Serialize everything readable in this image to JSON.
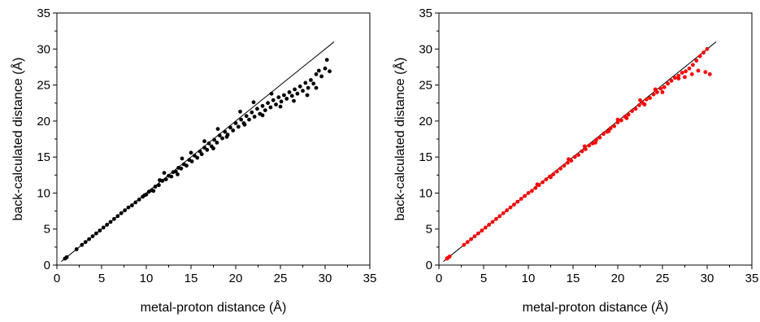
{
  "chart_data": [
    {
      "type": "scatter",
      "xlabel": "metal-proton distance (Å)",
      "ylabel": "back-calculated distance (Å)",
      "xlim": [
        0,
        35
      ],
      "ylim": [
        0,
        35
      ],
      "xticks": [
        "0",
        "5",
        "10",
        "15",
        "20",
        "25",
        "30",
        "35"
      ],
      "yticks": [
        "0",
        "5",
        "10",
        "15",
        "20",
        "25",
        "30",
        "35"
      ],
      "reference_line": {
        "x": [
          0.5,
          31
        ],
        "y": [
          0.5,
          31
        ]
      },
      "point_color": "#000000",
      "points": [
        [
          0.9,
          0.9
        ],
        [
          1.1,
          1.1
        ],
        [
          2.2,
          2.2
        ],
        [
          2.8,
          2.8
        ],
        [
          3.2,
          3.2
        ],
        [
          3.6,
          3.6
        ],
        [
          4.0,
          4.0
        ],
        [
          4.4,
          4.4
        ],
        [
          4.8,
          4.8
        ],
        [
          5.2,
          5.2
        ],
        [
          5.6,
          5.6
        ],
        [
          6.0,
          6.0
        ],
        [
          6.4,
          6.4
        ],
        [
          6.8,
          6.8
        ],
        [
          7.2,
          7.2
        ],
        [
          7.6,
          7.6
        ],
        [
          8.0,
          8.0
        ],
        [
          8.4,
          8.3
        ],
        [
          8.8,
          8.7
        ],
        [
          9.2,
          9.1
        ],
        [
          9.6,
          9.5
        ],
        [
          10.0,
          9.8
        ],
        [
          10.3,
          10.2
        ],
        [
          10.6,
          10.4
        ],
        [
          11.0,
          10.9
        ],
        [
          11.4,
          11.1
        ],
        [
          11.8,
          11.7
        ],
        [
          12.2,
          11.9
        ],
        [
          12.5,
          12.4
        ],
        [
          12.8,
          12.3
        ],
        [
          13.0,
          12.9
        ],
        [
          13.3,
          13.0
        ],
        [
          13.6,
          13.5
        ],
        [
          13.9,
          13.4
        ],
        [
          14.2,
          14.0
        ],
        [
          14.5,
          13.8
        ],
        [
          14.8,
          14.6
        ],
        [
          15.1,
          14.4
        ],
        [
          15.4,
          15.2
        ],
        [
          15.7,
          14.9
        ],
        [
          16.0,
          15.8
        ],
        [
          16.2,
          15.4
        ],
        [
          16.5,
          16.3
        ],
        [
          16.8,
          16.0
        ],
        [
          17.0,
          16.9
        ],
        [
          17.3,
          16.5
        ],
        [
          17.6,
          17.4
        ],
        [
          17.9,
          17.0
        ],
        [
          18.2,
          18.0
        ],
        [
          18.5,
          17.6
        ],
        [
          18.8,
          18.5
        ],
        [
          19.1,
          18.1
        ],
        [
          19.4,
          19.1
        ],
        [
          19.7,
          18.7
        ],
        [
          20.0,
          19.7
        ],
        [
          20.3,
          19.2
        ],
        [
          20.6,
          20.2
        ],
        [
          20.9,
          19.7
        ],
        [
          21.2,
          20.7
        ],
        [
          21.5,
          20.2
        ],
        [
          21.8,
          21.2
        ],
        [
          22.1,
          20.6
        ],
        [
          22.4,
          21.7
        ],
        [
          22.7,
          21.0
        ],
        [
          23.0,
          22.1
        ],
        [
          23.3,
          21.5
        ],
        [
          23.6,
          22.5
        ],
        [
          23.9,
          21.9
        ],
        [
          24.2,
          22.9
        ],
        [
          24.5,
          22.3
        ],
        [
          24.8,
          23.3
        ],
        [
          25.1,
          22.7
        ],
        [
          25.4,
          23.6
        ],
        [
          25.7,
          23.1
        ],
        [
          26.0,
          24.0
        ],
        [
          26.3,
          23.5
        ],
        [
          26.6,
          24.4
        ],
        [
          26.9,
          23.8
        ],
        [
          27.2,
          24.8
        ],
        [
          27.5,
          24.2
        ],
        [
          27.8,
          25.3
        ],
        [
          28.1,
          24.6
        ],
        [
          28.4,
          25.7
        ],
        [
          28.7,
          25.2
        ],
        [
          29.0,
          26.5
        ],
        [
          29.3,
          27.0
        ],
        [
          29.6,
          26.2
        ],
        [
          30.0,
          27.3
        ],
        [
          30.2,
          28.5
        ],
        [
          30.5,
          26.9
        ],
        [
          14.0,
          14.8
        ],
        [
          16.5,
          17.2
        ],
        [
          18.0,
          18.9
        ],
        [
          20.5,
          21.3
        ],
        [
          22.0,
          22.6
        ],
        [
          24.0,
          23.8
        ],
        [
          12.0,
          12.8
        ],
        [
          15.0,
          15.6
        ],
        [
          17.5,
          16.2
        ],
        [
          19.0,
          17.8
        ],
        [
          21.0,
          19.5
        ],
        [
          23.0,
          20.8
        ],
        [
          25.0,
          22.0
        ],
        [
          26.5,
          22.8
        ],
        [
          28.0,
          23.6
        ],
        [
          29.0,
          24.6
        ],
        [
          11.5,
          11.8
        ],
        [
          13.5,
          12.6
        ],
        [
          10.8,
          10.3
        ],
        [
          9.8,
          9.7
        ]
      ]
    },
    {
      "type": "scatter",
      "xlabel": "metal-proton distance (Å)",
      "ylabel": "back-calculated distance (Å)",
      "xlim": [
        0,
        35
      ],
      "ylim": [
        0,
        35
      ],
      "xticks": [
        "0",
        "5",
        "10",
        "15",
        "20",
        "25",
        "30",
        "35"
      ],
      "yticks": [
        "0",
        "5",
        "10",
        "15",
        "20",
        "25",
        "30",
        "35"
      ],
      "reference_line": {
        "x": [
          0.5,
          31
        ],
        "y": [
          0.5,
          31
        ]
      },
      "point_color": "#ff0000",
      "points": [
        [
          0.9,
          0.9
        ],
        [
          1.0,
          1.0
        ],
        [
          1.2,
          1.2
        ],
        [
          2.8,
          2.8
        ],
        [
          3.2,
          3.2
        ],
        [
          3.6,
          3.6
        ],
        [
          4.0,
          4.0
        ],
        [
          4.4,
          4.4
        ],
        [
          4.8,
          4.8
        ],
        [
          5.2,
          5.2
        ],
        [
          5.6,
          5.6
        ],
        [
          6.0,
          6.0
        ],
        [
          6.4,
          6.4
        ],
        [
          6.8,
          6.8
        ],
        [
          7.2,
          7.2
        ],
        [
          7.6,
          7.6
        ],
        [
          8.0,
          8.0
        ],
        [
          8.4,
          8.4
        ],
        [
          8.8,
          8.8
        ],
        [
          9.2,
          9.2
        ],
        [
          9.6,
          9.6
        ],
        [
          10.0,
          10.0
        ],
        [
          10.4,
          10.3
        ],
        [
          10.8,
          10.7
        ],
        [
          11.2,
          11.1
        ],
        [
          11.6,
          11.5
        ],
        [
          12.0,
          11.9
        ],
        [
          12.4,
          12.3
        ],
        [
          12.8,
          12.6
        ],
        [
          13.2,
          13.0
        ],
        [
          13.6,
          13.4
        ],
        [
          14.0,
          13.8
        ],
        [
          14.4,
          14.2
        ],
        [
          14.8,
          14.5
        ],
        [
          15.2,
          15.0
        ],
        [
          15.6,
          15.3
        ],
        [
          16.0,
          15.8
        ],
        [
          16.4,
          16.1
        ],
        [
          16.8,
          16.6
        ],
        [
          17.2,
          16.9
        ],
        [
          17.6,
          17.4
        ],
        [
          18.0,
          17.7
        ],
        [
          18.4,
          18.2
        ],
        [
          18.8,
          18.5
        ],
        [
          19.2,
          19.0
        ],
        [
          19.6,
          19.3
        ],
        [
          20.0,
          19.8
        ],
        [
          20.4,
          20.1
        ],
        [
          20.8,
          20.6
        ],
        [
          21.2,
          20.9
        ],
        [
          21.6,
          21.4
        ],
        [
          22.0,
          21.7
        ],
        [
          22.4,
          22.2
        ],
        [
          22.8,
          22.5
        ],
        [
          23.2,
          23.0
        ],
        [
          23.6,
          23.2
        ],
        [
          24.0,
          23.7
        ],
        [
          24.4,
          24.0
        ],
        [
          24.8,
          24.5
        ],
        [
          25.2,
          24.7
        ],
        [
          25.6,
          25.2
        ],
        [
          26.0,
          25.6
        ],
        [
          26.4,
          26.0
        ],
        [
          26.8,
          26.3
        ],
        [
          27.2,
          26.7
        ],
        [
          27.6,
          26.9
        ],
        [
          28.0,
          27.3
        ],
        [
          28.4,
          27.8
        ],
        [
          28.8,
          28.4
        ],
        [
          29.2,
          29.0
        ],
        [
          29.6,
          29.5
        ],
        [
          30.0,
          30.0
        ],
        [
          28.3,
          26.5
        ],
        [
          29.0,
          27.0
        ],
        [
          29.8,
          26.8
        ],
        [
          30.3,
          26.5
        ],
        [
          27.5,
          26.1
        ],
        [
          26.8,
          25.9
        ],
        [
          16.3,
          16.5
        ],
        [
          20.0,
          20.2
        ],
        [
          22.5,
          22.9
        ],
        [
          24.2,
          24.4
        ],
        [
          17.5,
          17.0
        ],
        [
          19.0,
          18.6
        ],
        [
          21.0,
          20.4
        ],
        [
          23.0,
          22.3
        ],
        [
          25.0,
          24.0
        ],
        [
          14.5,
          14.7
        ],
        [
          12.5,
          12.2
        ],
        [
          11.0,
          11.2
        ]
      ]
    }
  ]
}
